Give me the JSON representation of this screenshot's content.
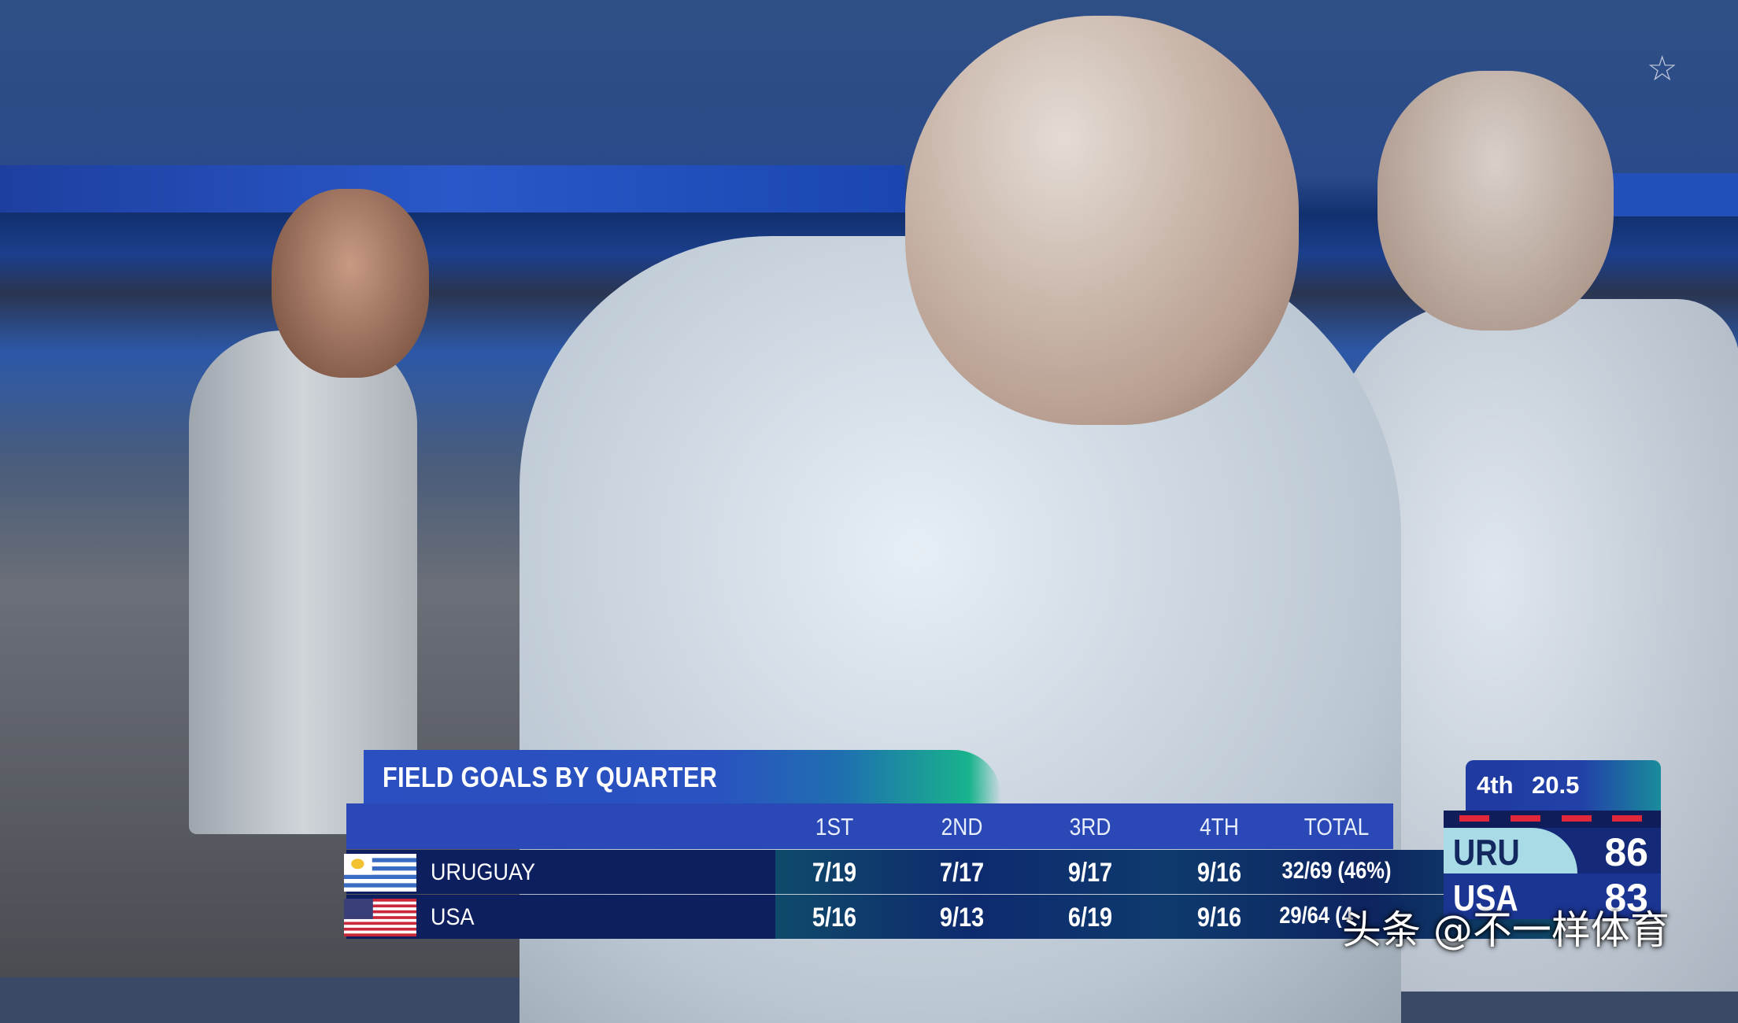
{
  "graphic": {
    "title": "FIELD GOALS BY QUARTER",
    "columns": [
      "1ST",
      "2ND",
      "3RD",
      "4TH",
      "TOTAL"
    ],
    "rows": [
      {
        "team": "URUGUAY",
        "flag": "uruguay-flag",
        "values": [
          "7/19",
          "7/17",
          "9/17",
          "9/16",
          "32/69 (46%)"
        ]
      },
      {
        "team": "USA",
        "flag": "usa-flag",
        "values": [
          "5/16",
          "9/13",
          "6/19",
          "9/16",
          "29/64 (4"
        ]
      }
    ]
  },
  "scorebug": {
    "period": "4th",
    "clock": "20.5",
    "teams": [
      {
        "abbr": "URU",
        "score": "86"
      },
      {
        "abbr": "USA",
        "score": "83"
      }
    ]
  },
  "watermark": "头条 @不一样体育",
  "colors": {
    "graphic_blue": "#2b49b6",
    "row_navy": "#0d1f5e",
    "accent_green": "#18b38c",
    "foul_red": "#e0283a",
    "uru_light": "#a9dbe6"
  }
}
